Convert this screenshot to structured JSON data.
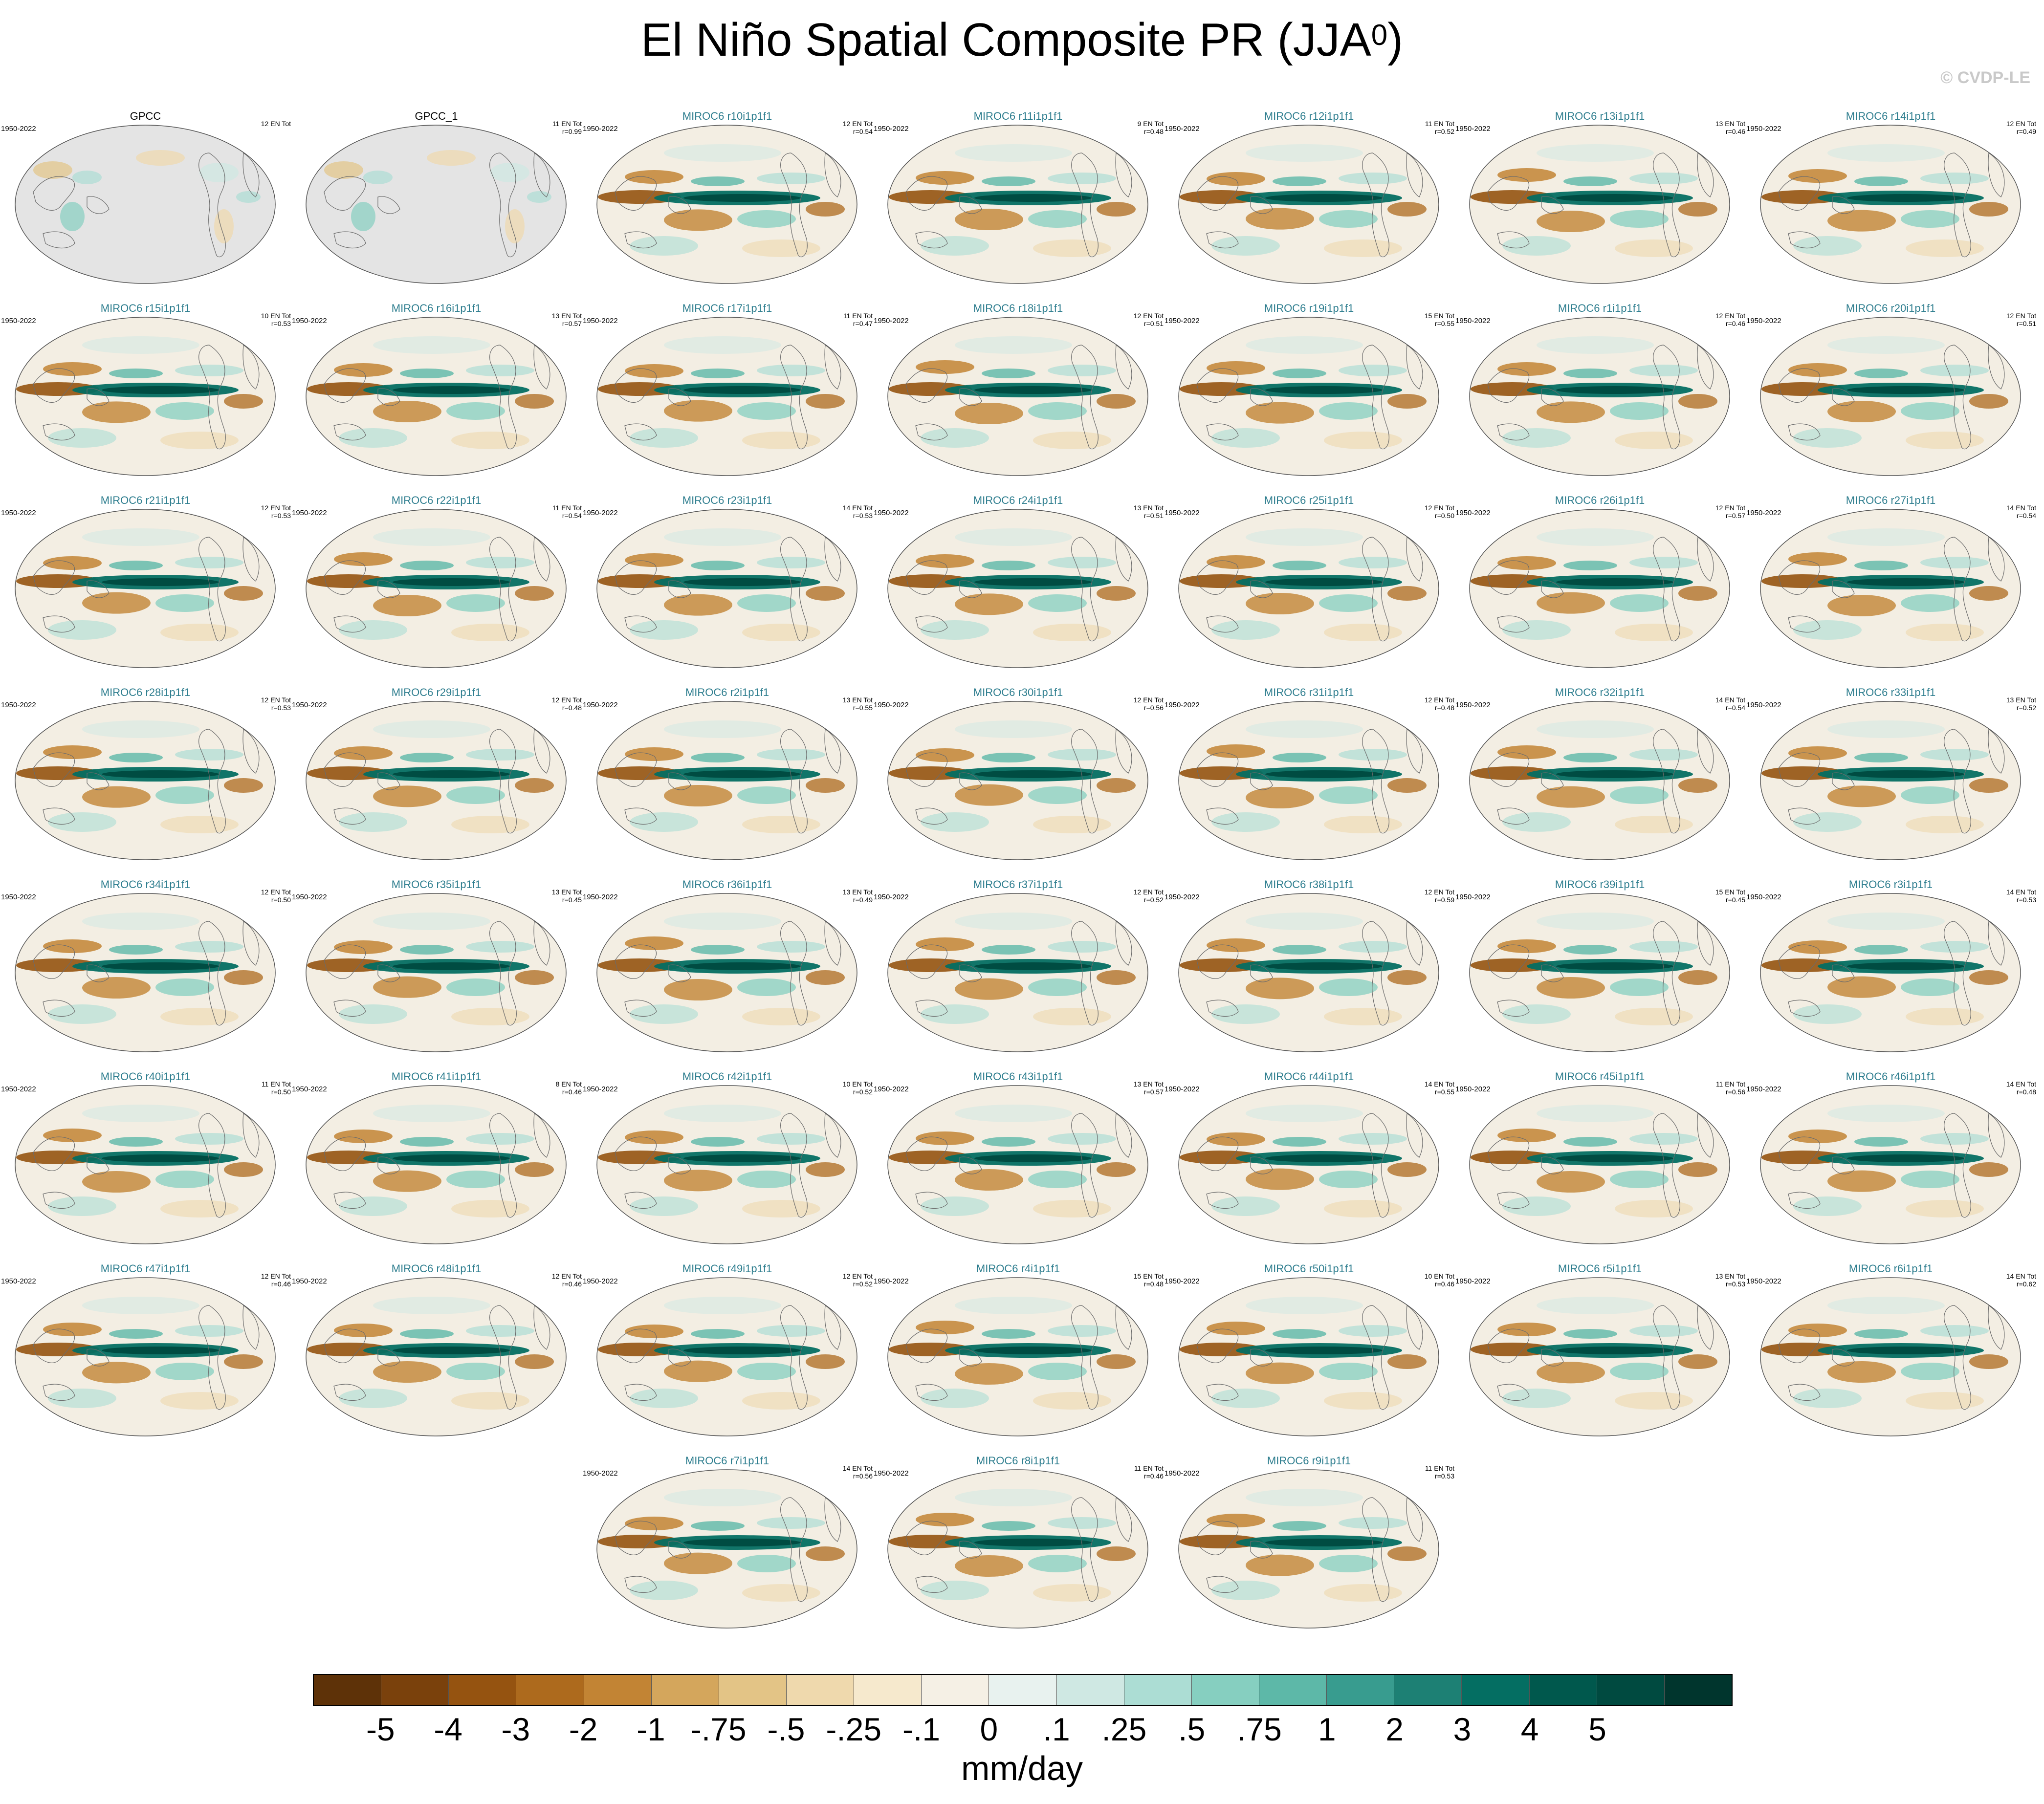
{
  "title": {
    "text": "El Niño Spatial Composite PR (JJA",
    "sup": "0",
    "close": ")"
  },
  "copyright": "© CVDP-LE",
  "colors": {
    "obs_title": "#000000",
    "model_title": "#2d7d8e",
    "land_fill": "#e4e4e4"
  },
  "panels": [
    {
      "name": "GPCC",
      "period": "1950-2022",
      "stats": "12 EN Tot",
      "type": "obs"
    },
    {
      "name": "GPCC_1",
      "period": "",
      "stats": "11 EN Tot\nr=0.99",
      "type": "obs"
    },
    {
      "name": "MIROC6 r10i1p1f1",
      "period": "1950-2022",
      "stats": "12 EN Tot\nr=0.54",
      "type": "model"
    },
    {
      "name": "MIROC6 r11i1p1f1",
      "period": "1950-2022",
      "stats": "9 EN Tot\nr=0.48",
      "type": "model"
    },
    {
      "name": "MIROC6 r12i1p1f1",
      "period": "1950-2022",
      "stats": "11 EN Tot\nr=0.52",
      "type": "model"
    },
    {
      "name": "MIROC6 r13i1p1f1",
      "period": "1950-2022",
      "stats": "13 EN Tot\nr=0.46",
      "type": "model"
    },
    {
      "name": "MIROC6 r14i1p1f1",
      "period": "1950-2022",
      "stats": "12 EN Tot\nr=0.49",
      "type": "model"
    },
    {
      "name": "MIROC6 r15i1p1f1",
      "period": "1950-2022",
      "stats": "10 EN Tot\nr=0.53",
      "type": "model"
    },
    {
      "name": "MIROC6 r16i1p1f1",
      "period": "1950-2022",
      "stats": "13 EN Tot\nr=0.57",
      "type": "model"
    },
    {
      "name": "MIROC6 r17i1p1f1",
      "period": "1950-2022",
      "stats": "11 EN Tot\nr=0.47",
      "type": "model"
    },
    {
      "name": "MIROC6 r18i1p1f1",
      "period": "1950-2022",
      "stats": "12 EN Tot\nr=0.51",
      "type": "model"
    },
    {
      "name": "MIROC6 r19i1p1f1",
      "period": "1950-2022",
      "stats": "15 EN Tot\nr=0.55",
      "type": "model"
    },
    {
      "name": "MIROC6 r1i1p1f1",
      "period": "1950-2022",
      "stats": "12 EN Tot\nr=0.46",
      "type": "model"
    },
    {
      "name": "MIROC6 r20i1p1f1",
      "period": "1950-2022",
      "stats": "12 EN Tot\nr=0.51",
      "type": "model"
    },
    {
      "name": "MIROC6 r21i1p1f1",
      "period": "1950-2022",
      "stats": "12 EN Tot\nr=0.53",
      "type": "model"
    },
    {
      "name": "MIROC6 r22i1p1f1",
      "period": "1950-2022",
      "stats": "11 EN Tot\nr=0.54",
      "type": "model"
    },
    {
      "name": "MIROC6 r23i1p1f1",
      "period": "1950-2022",
      "stats": "14 EN Tot\nr=0.53",
      "type": "model"
    },
    {
      "name": "MIROC6 r24i1p1f1",
      "period": "1950-2022",
      "stats": "13 EN Tot\nr=0.51",
      "type": "model"
    },
    {
      "name": "MIROC6 r25i1p1f1",
      "period": "1950-2022",
      "stats": "12 EN Tot\nr=0.50",
      "type": "model"
    },
    {
      "name": "MIROC6 r26i1p1f1",
      "period": "1950-2022",
      "stats": "12 EN Tot\nr=0.57",
      "type": "model"
    },
    {
      "name": "MIROC6 r27i1p1f1",
      "period": "1950-2022",
      "stats": "14 EN Tot\nr=0.54",
      "type": "model"
    },
    {
      "name": "MIROC6 r28i1p1f1",
      "period": "1950-2022",
      "stats": "12 EN Tot\nr=0.53",
      "type": "model"
    },
    {
      "name": "MIROC6 r29i1p1f1",
      "period": "1950-2022",
      "stats": "12 EN Tot\nr=0.48",
      "type": "model"
    },
    {
      "name": "MIROC6 r2i1p1f1",
      "period": "1950-2022",
      "stats": "13 EN Tot\nr=0.55",
      "type": "model"
    },
    {
      "name": "MIROC6 r30i1p1f1",
      "period": "1950-2022",
      "stats": "12 EN Tot\nr=0.56",
      "type": "model"
    },
    {
      "name": "MIROC6 r31i1p1f1",
      "period": "1950-2022",
      "stats": "12 EN Tot\nr=0.48",
      "type": "model"
    },
    {
      "name": "MIROC6 r32i1p1f1",
      "period": "1950-2022",
      "stats": "14 EN Tot\nr=0.54",
      "type": "model"
    },
    {
      "name": "MIROC6 r33i1p1f1",
      "period": "1950-2022",
      "stats": "13 EN Tot\nr=0.52",
      "type": "model"
    },
    {
      "name": "MIROC6 r34i1p1f1",
      "period": "1950-2022",
      "stats": "12 EN Tot\nr=0.50",
      "type": "model"
    },
    {
      "name": "MIROC6 r35i1p1f1",
      "period": "1950-2022",
      "stats": "13 EN Tot\nr=0.45",
      "type": "model"
    },
    {
      "name": "MIROC6 r36i1p1f1",
      "period": "1950-2022",
      "stats": "13 EN Tot\nr=0.49",
      "type": "model"
    },
    {
      "name": "MIROC6 r37i1p1f1",
      "period": "1950-2022",
      "stats": "12 EN Tot\nr=0.52",
      "type": "model"
    },
    {
      "name": "MIROC6 r38i1p1f1",
      "period": "1950-2022",
      "stats": "12 EN Tot\nr=0.59",
      "type": "model"
    },
    {
      "name": "MIROC6 r39i1p1f1",
      "period": "1950-2022",
      "stats": "15 EN Tot\nr=0.45",
      "type": "model"
    },
    {
      "name": "MIROC6 r3i1p1f1",
      "period": "1950-2022",
      "stats": "14 EN Tot\nr=0.53",
      "type": "model"
    },
    {
      "name": "MIROC6 r40i1p1f1",
      "period": "1950-2022",
      "stats": "11 EN Tot\nr=0.50",
      "type": "model"
    },
    {
      "name": "MIROC6 r41i1p1f1",
      "period": "1950-2022",
      "stats": "8 EN Tot\nr=0.46",
      "type": "model"
    },
    {
      "name": "MIROC6 r42i1p1f1",
      "period": "1950-2022",
      "stats": "10 EN Tot\nr=0.52",
      "type": "model"
    },
    {
      "name": "MIROC6 r43i1p1f1",
      "period": "1950-2022",
      "stats": "13 EN Tot\nr=0.57",
      "type": "model"
    },
    {
      "name": "MIROC6 r44i1p1f1",
      "period": "1950-2022",
      "stats": "14 EN Tot\nr=0.55",
      "type": "model"
    },
    {
      "name": "MIROC6 r45i1p1f1",
      "period": "1950-2022",
      "stats": "11 EN Tot\nr=0.56",
      "type": "model"
    },
    {
      "name": "MIROC6 r46i1p1f1",
      "period": "1950-2022",
      "stats": "14 EN Tot\nr=0.48",
      "type": "model"
    },
    {
      "name": "MIROC6 r47i1p1f1",
      "period": "1950-2022",
      "stats": "12 EN Tot\nr=0.46",
      "type": "model"
    },
    {
      "name": "MIROC6 r48i1p1f1",
      "period": "1950-2022",
      "stats": "12 EN Tot\nr=0.46",
      "type": "model"
    },
    {
      "name": "MIROC6 r49i1p1f1",
      "period": "1950-2022",
      "stats": "12 EN Tot\nr=0.52",
      "type": "model"
    },
    {
      "name": "MIROC6 r4i1p1f1",
      "period": "1950-2022",
      "stats": "15 EN Tot\nr=0.48",
      "type": "model"
    },
    {
      "name": "MIROC6 r50i1p1f1",
      "period": "1950-2022",
      "stats": "10 EN Tot\nr=0.46",
      "type": "model"
    },
    {
      "name": "MIROC6 r5i1p1f1",
      "period": "1950-2022",
      "stats": "13 EN Tot\nr=0.53",
      "type": "model"
    },
    {
      "name": "MIROC6 r6i1p1f1",
      "period": "1950-2022",
      "stats": "14 EN Tot\nr=0.62",
      "type": "model"
    },
    {
      "name": "MIROC6 r7i1p1f1",
      "period": "1950-2022",
      "stats": "14 EN Tot\nr=0.56",
      "type": "model"
    },
    {
      "name": "MIROC6 r8i1p1f1",
      "period": "1950-2022",
      "stats": "11 EN Tot\nr=0.46",
      "type": "model"
    },
    {
      "name": "MIROC6 r9i1p1f1",
      "period": "1950-2022",
      "stats": "11 EN Tot\nr=0.53",
      "type": "model"
    }
  ],
  "colorbar": {
    "colors": [
      "#5e3208",
      "#7a410c",
      "#955310",
      "#ad6a1d",
      "#c28434",
      "#d4a65c",
      "#e3c486",
      "#efd9ad",
      "#f6e9cd",
      "#f5f0e5",
      "#e8f2ef",
      "#cfe8e3",
      "#acddd4",
      "#86cfc0",
      "#5db8a8",
      "#389c8f",
      "#1d8074",
      "#046e62",
      "#00584d",
      "#004a40",
      "#00352d"
    ],
    "ticks": [
      "-5",
      "-4",
      "-3",
      "-2",
      "-1",
      "-.75",
      "-.5",
      "-.25",
      "-.1",
      "0",
      ".1",
      ".25",
      ".5",
      ".75",
      "1",
      "2",
      "3",
      "4",
      "5"
    ],
    "units": "mm/day"
  }
}
